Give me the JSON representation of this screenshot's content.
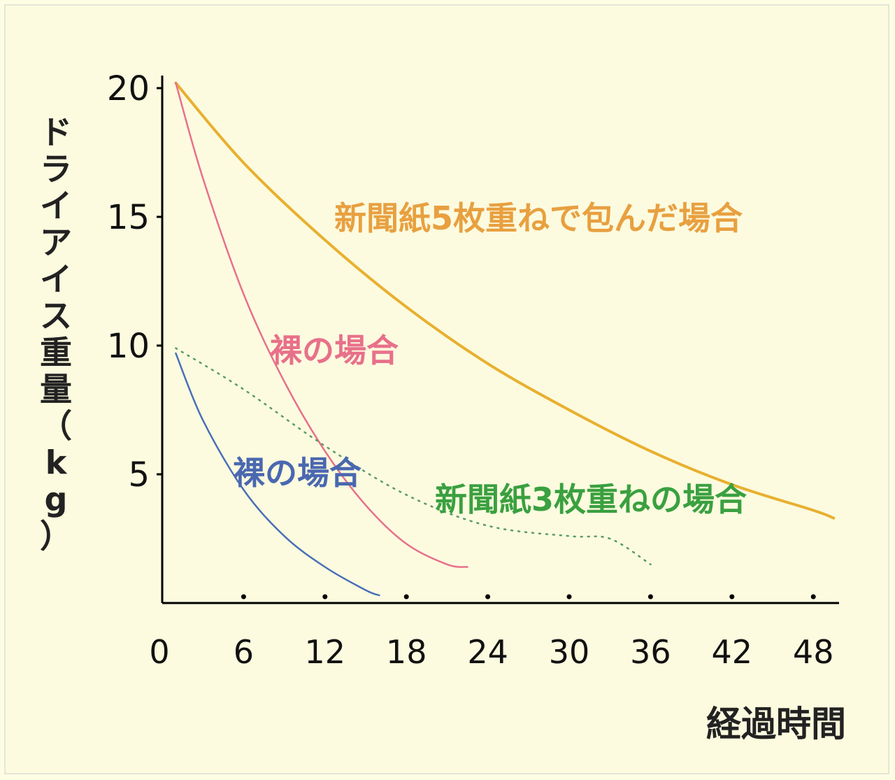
{
  "chart_data": {
    "type": "line",
    "xlabel": "経過時間",
    "ylabel": "ドライアイス重量（kg）",
    "x_ticks": [
      "0",
      "6",
      "12",
      "18",
      "24",
      "30",
      "36",
      "42",
      "48"
    ],
    "y_ticks": [
      "20",
      "15",
      "10",
      "5"
    ],
    "xlim": [
      0,
      48
    ],
    "ylim": [
      0,
      20
    ],
    "grid": false,
    "legend": "none",
    "series": [
      {
        "name": "新聞紙5枚重ねで包んだ場合",
        "color": "#e8b030",
        "style": "solid",
        "points": [
          [
            1,
            20.2
          ],
          [
            6,
            17.1
          ],
          [
            12,
            14.1
          ],
          [
            18,
            11.5
          ],
          [
            24,
            9.3
          ],
          [
            30,
            7.5
          ],
          [
            36,
            5.9
          ],
          [
            42,
            4.6
          ],
          [
            48,
            3.6
          ],
          [
            49.5,
            3.3
          ]
        ]
      },
      {
        "name": "裸の場合",
        "color": "#e8708a",
        "style": "solid",
        "points": [
          [
            1,
            20.2
          ],
          [
            3,
            16.5
          ],
          [
            6,
            12.0
          ],
          [
            9,
            8.6
          ],
          [
            12,
            5.9
          ],
          [
            15,
            3.8
          ],
          [
            18,
            2.3
          ],
          [
            21,
            1.5
          ],
          [
            22.5,
            1.4
          ]
        ]
      },
      {
        "name": "新聞紙3枚重ねの場合",
        "color": "#5a9a6a",
        "style": "dotted",
        "points": [
          [
            1,
            9.9
          ],
          [
            6,
            8.3
          ],
          [
            12,
            6.1
          ],
          [
            18,
            4.2
          ],
          [
            24,
            3.0
          ],
          [
            30,
            2.6
          ],
          [
            33,
            2.5
          ],
          [
            36,
            1.5
          ]
        ]
      },
      {
        "name": "裸の場合",
        "color": "#4a70b8",
        "style": "solid",
        "points": [
          [
            1,
            9.7
          ],
          [
            3,
            7.1
          ],
          [
            6,
            4.4
          ],
          [
            9,
            2.6
          ],
          [
            12,
            1.4
          ],
          [
            15,
            0.5
          ],
          [
            16,
            0.3
          ]
        ]
      }
    ],
    "annotations": [
      {
        "text": "新聞紙5枚重ねで包んだ場合",
        "color": "#e8a040"
      },
      {
        "text": "裸の場合",
        "color": "#e8708a"
      },
      {
        "text": "裸の場合",
        "color": "#4a68b0"
      },
      {
        "text": "新聞紙3枚重ねの場合",
        "color": "#3aa040"
      }
    ]
  }
}
